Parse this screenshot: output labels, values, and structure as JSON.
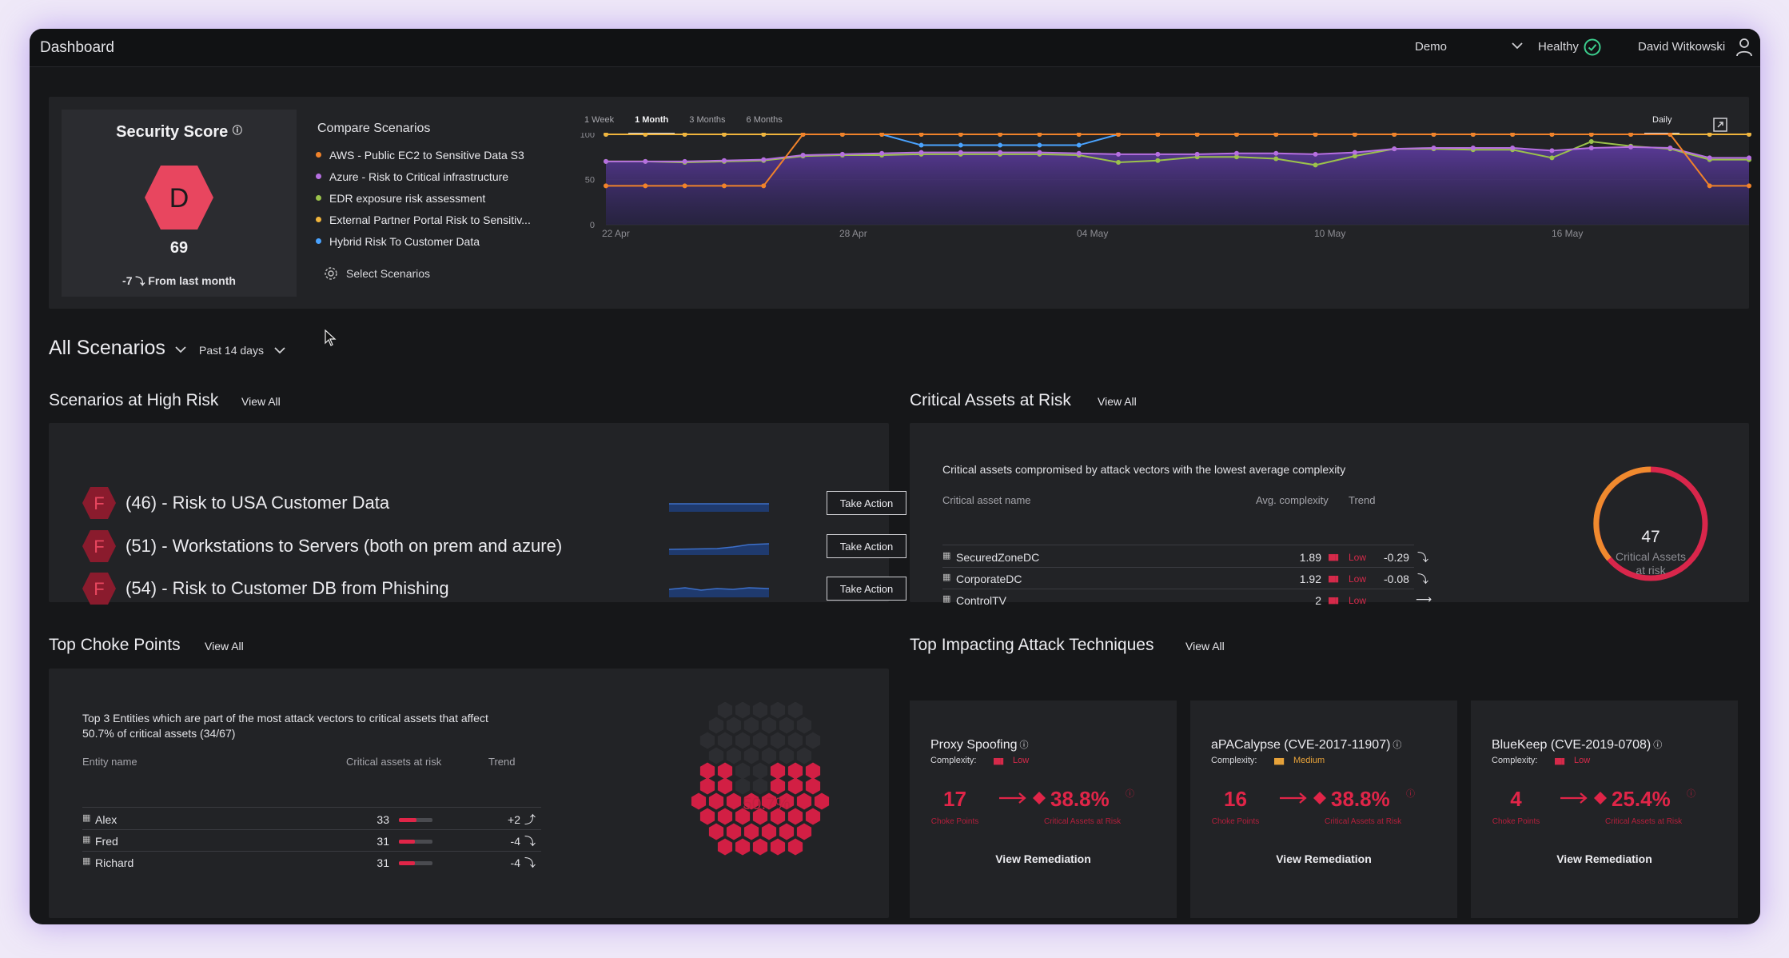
{
  "header": {
    "title": "Dashboard",
    "tenant": "Demo",
    "health": "Healthy",
    "user": "David Witkowski"
  },
  "score": {
    "title": "Security Score",
    "grade": "D",
    "value": "69",
    "change": "-7",
    "change_label": "From last month"
  },
  "compare": {
    "title": "Compare Scenarios",
    "items": [
      {
        "label": "AWS - Public EC2 to Sensitive Data S3",
        "color": "#f0822a"
      },
      {
        "label": "Azure - Risk to Critical infrastructure",
        "color": "#b66fe0"
      },
      {
        "label": "EDR exposure risk assessment",
        "color": "#9bc24b"
      },
      {
        "label": "External Partner Portal Risk to Sensitiv...",
        "color": "#f0b43c"
      },
      {
        "label": "Hybrid Risk To Customer Data",
        "color": "#4aa3ff"
      }
    ],
    "select_label": "Select Scenarios",
    "ranges": [
      "1 Week",
      "1 Month",
      "3 Months",
      "6 Months"
    ],
    "active_range": "1 Month",
    "granularity": "Daily"
  },
  "chart_data": {
    "type": "line",
    "x_ticks": [
      "22 Apr",
      "28 Apr",
      "04 May",
      "10 May",
      "16 May"
    ],
    "y_ticks": [
      0,
      50,
      100
    ],
    "ylim": [
      0,
      100
    ],
    "n_points": 30,
    "series": [
      {
        "color": "#4aa3ff",
        "values": [
          100,
          100,
          100,
          100,
          100,
          100,
          100,
          100,
          88,
          88,
          88,
          88,
          88,
          100,
          100,
          100,
          100,
          100,
          100,
          100,
          100,
          100,
          100,
          100,
          100,
          100,
          100,
          100,
          100,
          100
        ]
      },
      {
        "color": "#f0b43c",
        "values": [
          100,
          100,
          100,
          100,
          100,
          100,
          100,
          100,
          100,
          100,
          100,
          100,
          100,
          100,
          100,
          100,
          100,
          100,
          100,
          100,
          100,
          100,
          100,
          100,
          100,
          100,
          100,
          100,
          100,
          100
        ]
      },
      {
        "color": "#9bc24b",
        "values": [
          70,
          70,
          69,
          70,
          71,
          76,
          77,
          77,
          78,
          78,
          78,
          78,
          77,
          69,
          71,
          75,
          75,
          73,
          66,
          76,
          84,
          84,
          83,
          83,
          74,
          92,
          87,
          84,
          72,
          72
        ]
      },
      {
        "color": "#b66fe0",
        "values": [
          70,
          70,
          70,
          71,
          72,
          77,
          78,
          79,
          80,
          80,
          80,
          80,
          79,
          78,
          78,
          78,
          79,
          79,
          78,
          80,
          84,
          85,
          85,
          85,
          82,
          85,
          86,
          85,
          74,
          74
        ]
      },
      {
        "color": "#f0822a",
        "values": [
          43,
          43,
          43,
          43,
          43,
          100,
          100,
          100,
          100,
          100,
          100,
          100,
          100,
          100,
          100,
          100,
          100,
          100,
          100,
          100,
          100,
          100,
          100,
          100,
          100,
          100,
          100,
          100,
          43,
          43
        ]
      }
    ]
  },
  "scenarios_filter": {
    "title": "All Scenarios",
    "period": "Past 14 days"
  },
  "high_risk": {
    "title": "Scenarios at High Risk",
    "view_all": "View All",
    "rows": [
      {
        "grade": "F",
        "label": "(46) - Risk to USA Customer Data",
        "action": "Take Action"
      },
      {
        "grade": "F",
        "label": "(51) - Workstations to Servers (both on prem and azure)",
        "action": "Take Action"
      },
      {
        "grade": "F",
        "label": "(54) - Risk to Customer DB from Phishing",
        "action": "Take Action"
      }
    ]
  },
  "critical_assets": {
    "title": "Critical Assets at Risk",
    "view_all": "View All",
    "description": "Critical assets compromised by attack vectors with the lowest average complexity",
    "columns": [
      "Critical asset name",
      "Avg. complexity",
      "Trend"
    ],
    "rows": [
      {
        "name": "SecuredZoneDC",
        "complexity": "1.89",
        "level": "Low",
        "trend": "-0.29"
      },
      {
        "name": "CorporateDC",
        "complexity": "1.92",
        "level": "Low",
        "trend": "-0.08"
      },
      {
        "name": "ControlTV",
        "complexity": "2",
        "level": "Low",
        "trend": ""
      }
    ],
    "ring_value": "47",
    "ring_label_1": "Critical Assets",
    "ring_label_2": "at risk"
  },
  "choke_points": {
    "title": "Top Choke Points",
    "view_all": "View All",
    "description_1": "Top 3 Entities which are part of the most attack vectors to critical assets that affect",
    "description_2": "50.7% of critical assets (34/67)",
    "columns": [
      "Entity name",
      "Critical assets at risk",
      "Trend"
    ],
    "rows": [
      {
        "name": "Alex",
        "count": "33",
        "trend": "+2"
      },
      {
        "name": "Fred",
        "count": "31",
        "trend": "-4"
      },
      {
        "name": "Richard",
        "count": "31",
        "trend": "-4"
      }
    ],
    "percent": "50.7%"
  },
  "techniques": {
    "title": "Top Impacting Attack Techniques",
    "view_all": "View All",
    "complexity_label": "Complexity:",
    "choke_label": "Choke Points",
    "assets_label": "Critical Assets at Risk",
    "remediation_label": "View Remediation",
    "cards": [
      {
        "name": "Proxy Spoofing",
        "level": "Low",
        "level_color": "#d52a4a",
        "choke": "17",
        "pct": "38.8%"
      },
      {
        "name": "aPACalypse (CVE-2017-11907)",
        "level": "Medium",
        "level_color": "#e8a33a",
        "choke": "16",
        "pct": "38.8%"
      },
      {
        "name": "BlueKeep (CVE-2019-0708)",
        "level": "Low",
        "level_color": "#d52a4a",
        "choke": "4",
        "pct": "25.4%"
      }
    ]
  }
}
